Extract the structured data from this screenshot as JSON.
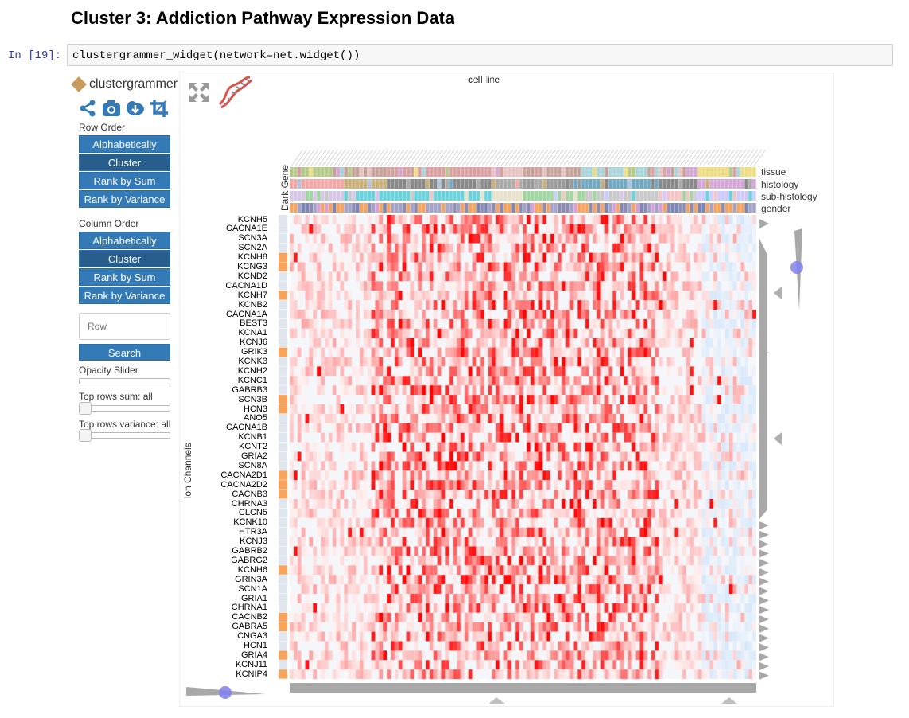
{
  "page": {
    "title": "Cluster 3: Addiction Pathway Expression Data",
    "prompt": "In [19]:",
    "code": "clustergrammer_widget(network=net.widget())"
  },
  "sidebar": {
    "logo_text": "clustergrammer",
    "icons": [
      "share-icon",
      "camera-icon",
      "download-icon",
      "crop-icon"
    ],
    "row_order_label": "Row Order",
    "row_order_buttons": [
      "Alphabetically",
      "Cluster",
      "Rank by Sum",
      "Rank by Variance"
    ],
    "column_order_label": "Column Order",
    "column_order_buttons": [
      "Alphabetically",
      "Cluster",
      "Rank by Sum",
      "Rank by Variance"
    ],
    "active_order": "Cluster",
    "search_placeholder": "Row",
    "search_button": "Search",
    "opacity_label": "Opacity Slider",
    "top_rows_sum_label": "Top rows sum: all",
    "top_rows_variance_label": "Top rows variance: all"
  },
  "heatmap": {
    "column_title": "cell line",
    "row_title": "Ion Channels",
    "row_category_label": "Dark Gene",
    "column_categories": [
      "tissue",
      "histology",
      "sub-histology",
      "gender"
    ],
    "rows": [
      "KCNH5",
      "CACNA1E",
      "SCN3A",
      "SCN2A",
      "KCNH8",
      "KCNG3",
      "KCND2",
      "CACNA1D",
      "KCNH7",
      "KCNB2",
      "CACNA1A",
      "BEST3",
      "KCNA1",
      "KCNJ6",
      "GRIK3",
      "KCNK3",
      "KCNH2",
      "KCNC1",
      "GABRB3",
      "SCN3B",
      "HCN3",
      "ANO5",
      "CACNA1B",
      "KCNB1",
      "KCNT2",
      "GRIA2",
      "SCN8A",
      "CACNA2D1",
      "CACNA2D2",
      "CACNB3",
      "CHRNA3",
      "CLCN5",
      "KCNK10",
      "HTR3A",
      "KCNJ3",
      "GABRB2",
      "GABRG2",
      "KCNH6",
      "GRIN3A",
      "SCN1A",
      "GRIA1",
      "CHRNA1",
      "CACNB2",
      "GABRA5",
      "CNGA3",
      "HCN1",
      "GRIA4",
      "KCNJ11",
      "KCNIP4"
    ],
    "dark_gene_rows": [
      "KCNH8",
      "KCNG3",
      "KCNH7",
      "GRIK3",
      "SCN3B",
      "HCN3",
      "CACNA2D1",
      "CACNA2D2",
      "CACNB3",
      "KCNH6",
      "CACNB2",
      "GABRA5",
      "GRIA4",
      "KCNIP4"
    ],
    "colors": {
      "positive": "#ff0000",
      "negative": "#1f77b4",
      "dark_gene": "#f7a35c"
    }
  }
}
